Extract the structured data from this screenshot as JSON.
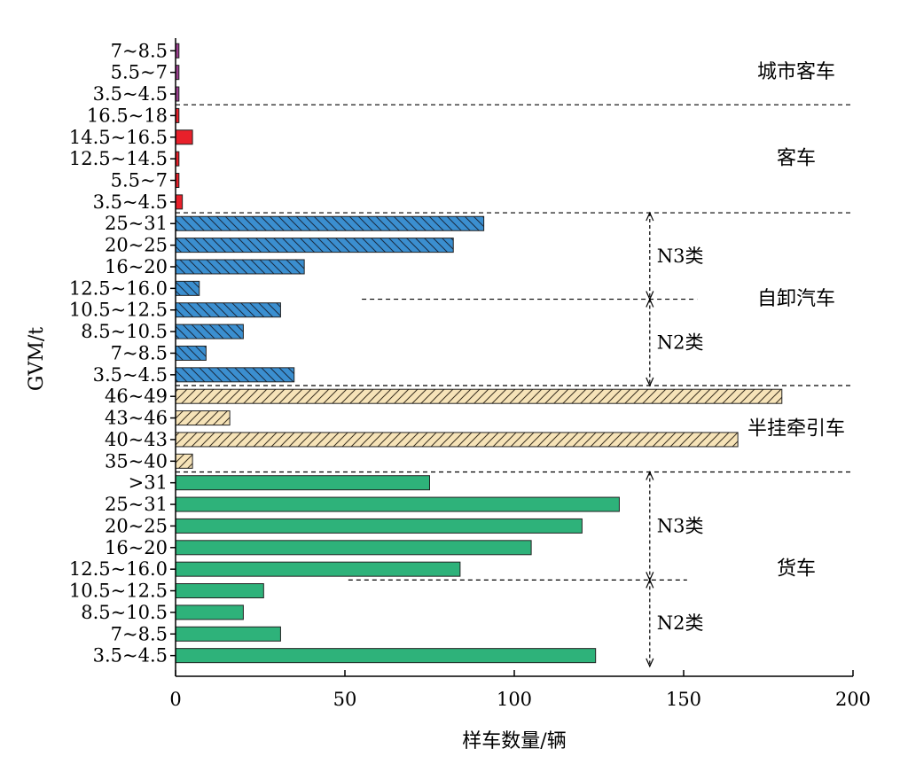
{
  "chart_data": {
    "type": "bar",
    "orientation": "horizontal",
    "xlabel": "样车数量/辆",
    "ylabel": "GVM/t",
    "xlim": [
      0,
      200
    ],
    "xticks": [
      0,
      50,
      100,
      150,
      200
    ],
    "grid": false,
    "groups": [
      {
        "name": "城市客车",
        "color": "#9b3f8f",
        "pattern": "solid",
        "categories": [
          "7~8.5",
          "5.5~7",
          "3.5~4.5"
        ],
        "values": [
          1,
          1,
          1
        ],
        "subgroups": []
      },
      {
        "name": "客车",
        "color": "#e8202a",
        "pattern": "solid",
        "categories": [
          "16.5~18",
          "14.5~16.5",
          "12.5~14.5",
          "5.5~7",
          "3.5~4.5"
        ],
        "values": [
          1,
          5,
          1,
          1,
          2
        ],
        "subgroups": []
      },
      {
        "name": "自卸汽车",
        "color": "#3b8fd0",
        "pattern": "hatch-back",
        "categories": [
          "25~31",
          "20~25",
          "16~20",
          "12.5~16.0",
          "10.5~12.5",
          "8.5~10.5",
          "7~8.5",
          "3.5~4.5"
        ],
        "values": [
          91,
          82,
          38,
          7,
          31,
          20,
          9,
          35
        ],
        "subgroups": [
          {
            "label": "N3类",
            "from": 0,
            "to": 3
          },
          {
            "label": "N2类",
            "from": 4,
            "to": 7
          }
        ]
      },
      {
        "name": "半挂牵引车",
        "color": "#f6e3b8",
        "pattern": "hatch-forward",
        "categories": [
          "46~49",
          "43~46",
          "40~43",
          "35~40"
        ],
        "values": [
          179,
          16,
          166,
          5
        ],
        "subgroups": []
      },
      {
        "name": "货车",
        "color": "#2eb27a",
        "pattern": "solid",
        "categories": [
          ">31",
          "25~31",
          "20~25",
          "16~20",
          "12.5~16.0",
          "10.5~12.5",
          "8.5~10.5",
          "7~8.5",
          "3.5~4.5"
        ],
        "values": [
          75,
          131,
          120,
          105,
          84,
          26,
          20,
          31,
          124
        ],
        "subgroups": [
          {
            "label": "N3类",
            "from": 0,
            "to": 4
          },
          {
            "label": "N2类",
            "from": 5,
            "to": 8
          }
        ]
      }
    ]
  }
}
